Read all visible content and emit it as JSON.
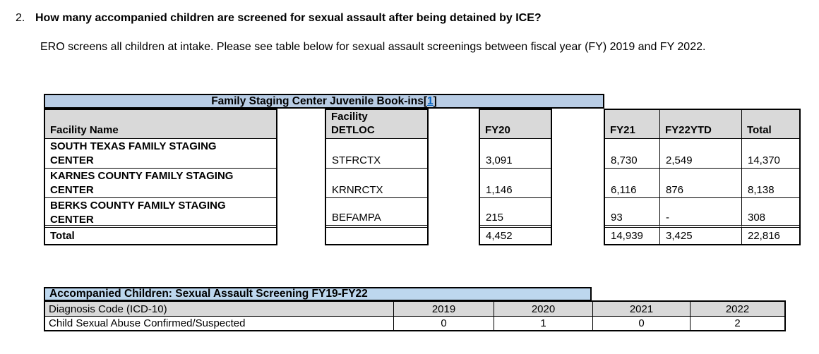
{
  "page": {
    "question_number": "2.",
    "question": "How many accompanied children are screened for sexual assault after being detained by ICE?",
    "intro": "ERO screens all children at intake. Please see table below for sexual assault screenings between fiscal year (FY) 2019 and FY 2022."
  },
  "bookins_table": {
    "title": "Family Staging Center Juvenile Book-ins",
    "footnote_open": "[",
    "footnote_ref": "1",
    "footnote_close": "]",
    "headers": {
      "facility_name": "Facility Name",
      "detloc": "Facility\nDETLOC",
      "fy20": "FY20",
      "fy21": "FY21",
      "fy22ytd": "FY22YTD",
      "total": "Total"
    },
    "rows": [
      {
        "name": "SOUTH TEXAS FAMILY STAGING\nCENTER",
        "detloc": "STFRCTX",
        "fy20": "3,091",
        "fy21": "8,730",
        "fy22ytd": "2,549",
        "total": "14,370"
      },
      {
        "name": "KARNES COUNTY FAMILY STAGING\nCENTER",
        "detloc": "KRNRCTX",
        "fy20": "1,146",
        "fy21": "6,116",
        "fy22ytd": "876",
        "total": "8,138"
      },
      {
        "name": "BERKS COUNTY FAMILY STAGING\nCENTER",
        "detloc": "BEFAMPA",
        "fy20": "215",
        "fy21": "93",
        "fy22ytd": "-",
        "total": "308"
      }
    ],
    "total_row": {
      "label": "Total",
      "fy20": "4,452",
      "fy21": "14,939",
      "fy22ytd": "3,425",
      "total": "22,816"
    }
  },
  "screening_table": {
    "title": "Accompanied Children: Sexual Assault Screening FY19-FY22",
    "headers": {
      "diagnosis": "Diagnosis Code (ICD-10)",
      "y2019": "2019",
      "y2020": "2020",
      "y2021": "2021",
      "y2022": "2022"
    },
    "row": {
      "label": "Child Sexual Abuse Confirmed/Suspected",
      "y2019": "0",
      "y2020": "1",
      "y2021": "0",
      "y2022": "2"
    }
  },
  "colors": {
    "table1_title_bg": "#b8cce4",
    "table2_title_bg": "#bdd7ee",
    "header_bg": "#d9d9d9",
    "footnote_link": "#0563c1"
  }
}
